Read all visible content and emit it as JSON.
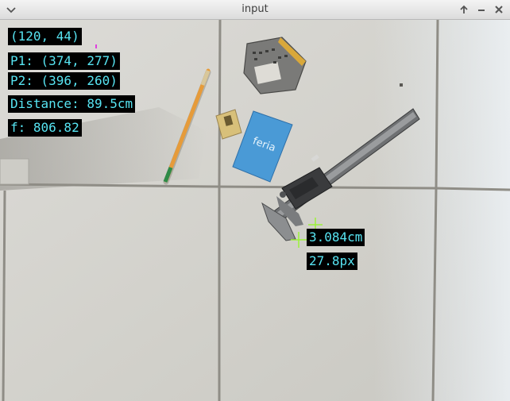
{
  "window": {
    "title": "input",
    "menu_icon": "chevron-down-icon",
    "keep_above_icon": "arrow-up-icon",
    "minimize_icon": "minimize-icon",
    "close_icon": "close-icon"
  },
  "overlay": {
    "cursor_coords": "(120, 44)",
    "p1": "P1: (374, 277)",
    "p2": "P2: (396, 260)",
    "distance": "Distance: 89.5cm",
    "focal": "f: 806.82",
    "measurement_cm": "3.084cm",
    "measurement_px": "27.8px",
    "text_color": "#57e4f2",
    "marker_color": "#9cf23a"
  },
  "scene": {
    "objects": [
      "pencil",
      "sharpener",
      "phone-battery",
      "feria-card",
      "digital-caliper",
      "floor-tiles"
    ],
    "card_text": "feria"
  }
}
